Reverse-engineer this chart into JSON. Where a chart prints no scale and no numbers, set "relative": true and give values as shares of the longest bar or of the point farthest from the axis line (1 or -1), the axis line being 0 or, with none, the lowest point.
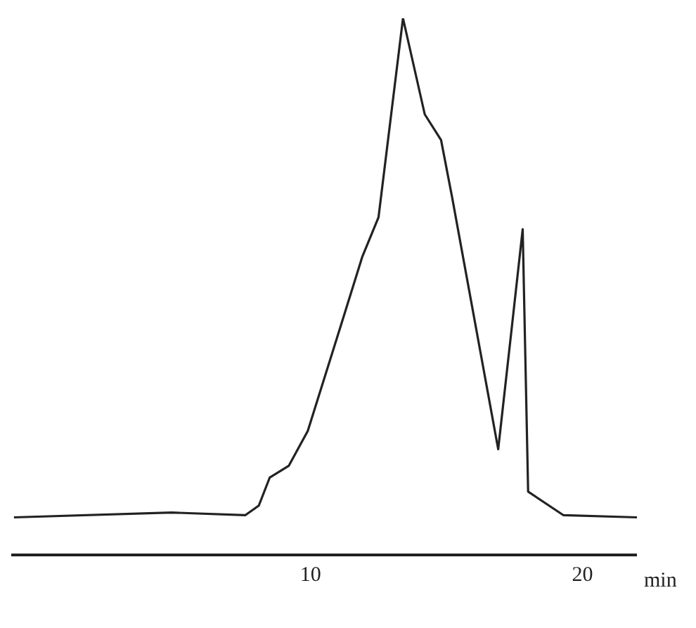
{
  "chart_data": {
    "type": "line",
    "relative": true,
    "xlabel": "min",
    "xlim": [
      -1,
      22
    ],
    "xticks": [
      10,
      20
    ],
    "marker": "none",
    "line_style": "solid",
    "series": [
      {
        "color": "#222222",
        "x": [
          -0.9,
          4.9,
          7.6,
          8.1,
          8.5,
          9.2,
          9.9,
          11.2,
          11.9,
          12.5,
          13.4,
          14.2,
          14.8,
          15.2,
          16.9,
          17.4,
          17.8,
          18.0,
          19.3,
          22.0
        ],
        "values": [
          0.07,
          0.079,
          0.074,
          0.092,
          0.144,
          0.166,
          0.231,
          0.441,
          0.555,
          0.629,
          1,
          0.821,
          0.773,
          0.668,
          0.197,
          0.424,
          0.607,
          0.118,
          0.074,
          0.07
        ]
      }
    ]
  }
}
